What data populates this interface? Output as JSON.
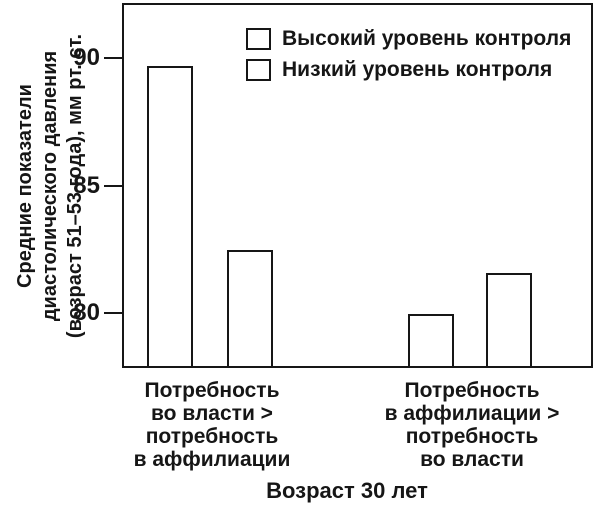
{
  "chart_data": {
    "type": "bar",
    "title": "",
    "categories": [
      "Потребность во власти > потребность в аффилиации",
      "Потребность в аффилиации > потребность во власти"
    ],
    "category_label_lines": [
      [
        "Потребность",
        "во власти >",
        "потребность",
        "в аффилиации"
      ],
      [
        "Потребность",
        "в аффилиации >",
        "потребность",
        "во власти"
      ]
    ],
    "series": [
      {
        "name": "Высокий уровень контроля",
        "values": [
          89.6,
          79.9
        ]
      },
      {
        "name": "Низкий уровень контроля",
        "values": [
          82.4,
          81.5
        ]
      }
    ],
    "xlabel": "Возраст 30 лет",
    "ylabel": "Средние показатели диастолического давления (возраст 51–53 года), мм рт. ст.",
    "ylabel_lines": [
      "Средние показатели",
      "диастолического давления",
      "(возраст 51–53 года), мм рт. ст."
    ],
    "yticks": [
      80,
      85,
      90
    ],
    "ylim": [
      77.85,
      92.15
    ],
    "grid": false,
    "legend_position": "inside-top-center",
    "bar_fill": "#ffffff",
    "bar_border": "#161616",
    "text_color": "#161616"
  }
}
